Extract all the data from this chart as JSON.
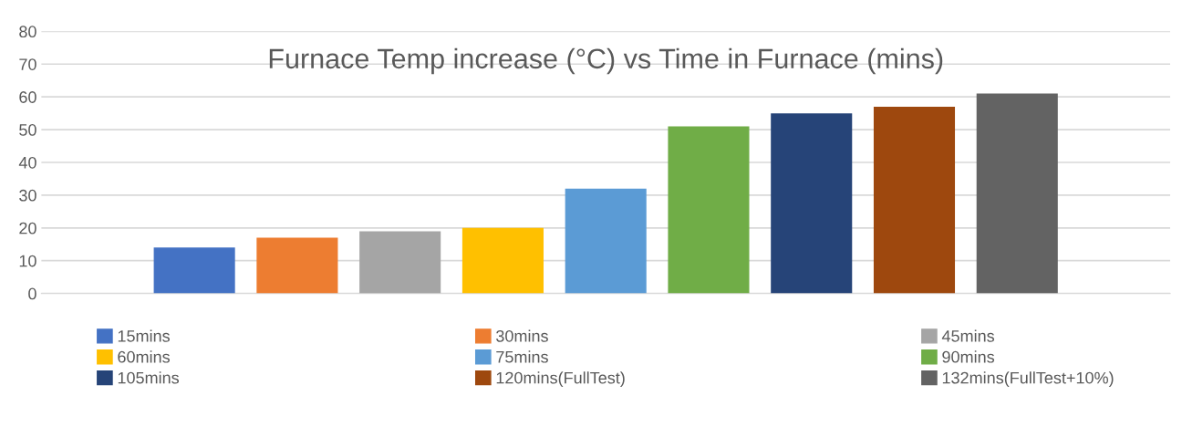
{
  "chart_data": {
    "type": "bar",
    "title": "Furnace Temp increase (°C) vs Time in Furnace (mins)",
    "categories": [
      null
    ],
    "series": [
      {
        "name": "15mins",
        "color": "#4472c4",
        "values": [
          14
        ]
      },
      {
        "name": "30mins",
        "color": "#ed7d31",
        "values": [
          17
        ]
      },
      {
        "name": "45mins",
        "color": "#a5a5a5",
        "values": [
          19
        ]
      },
      {
        "name": "60mins",
        "color": "#ffc000",
        "values": [
          20
        ]
      },
      {
        "name": "75mins",
        "color": "#5b9bd5",
        "values": [
          32
        ]
      },
      {
        "name": "90mins",
        "color": "#70ad47",
        "values": [
          51
        ]
      },
      {
        "name": "105mins",
        "color": "#264478",
        "values": [
          55
        ]
      },
      {
        "name": "120mins(FullTest)",
        "color": "#9e480e",
        "values": [
          57
        ]
      },
      {
        "name": "132mins(FullTest+10%)",
        "color": "#636363",
        "values": [
          61
        ]
      }
    ],
    "ylim": [
      0,
      80
    ],
    "yticks": [
      0,
      10,
      20,
      30,
      40,
      50,
      60,
      70,
      80
    ],
    "grid": "y",
    "legend": "bottom"
  }
}
